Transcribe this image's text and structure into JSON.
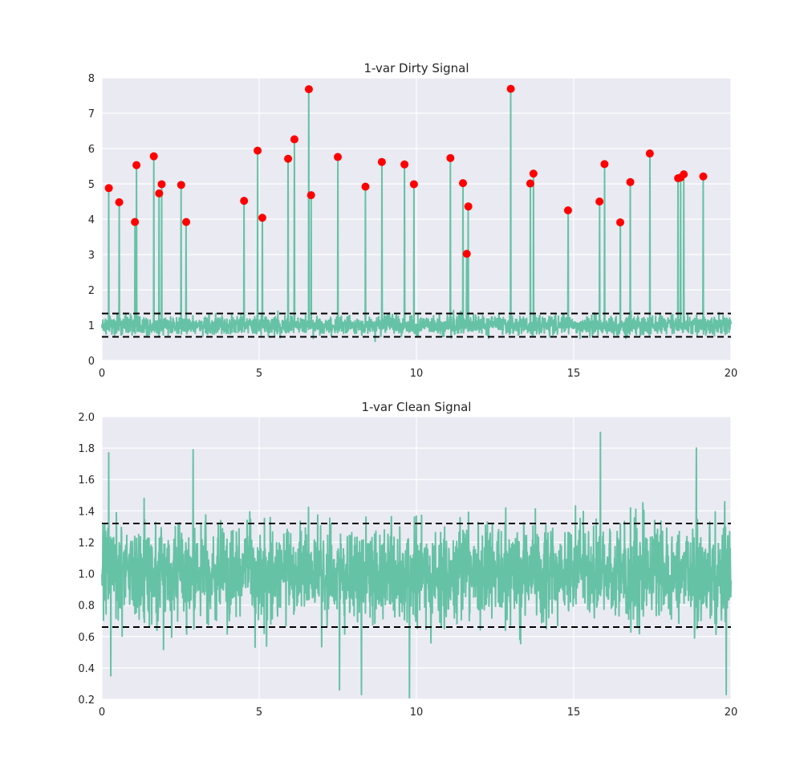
{
  "chart_data": [
    {
      "type": "line",
      "title": "1-var Dirty Signal",
      "xlabel": "",
      "ylabel": "",
      "xlim": [
        0,
        20
      ],
      "ylim": [
        0,
        8
      ],
      "xticks": [
        "0",
        "5",
        "10",
        "15",
        "20"
      ],
      "yticks": [
        "0",
        "1",
        "2",
        "3",
        "4",
        "5",
        "6",
        "7",
        "8"
      ],
      "grid": true,
      "baseline": {
        "mean": 1.0,
        "noise_min": 0.25,
        "noise_max": 1.65
      },
      "thresholds": [
        1.33,
        0.67
      ],
      "outliers": [
        {
          "x": 0.22,
          "y": 4.88
        },
        {
          "x": 0.55,
          "y": 4.48
        },
        {
          "x": 1.05,
          "y": 3.92
        },
        {
          "x": 1.1,
          "y": 5.53
        },
        {
          "x": 1.65,
          "y": 5.78
        },
        {
          "x": 1.82,
          "y": 4.73
        },
        {
          "x": 1.9,
          "y": 4.99
        },
        {
          "x": 2.52,
          "y": 4.97
        },
        {
          "x": 2.68,
          "y": 3.92
        },
        {
          "x": 4.52,
          "y": 4.52
        },
        {
          "x": 4.95,
          "y": 5.94
        },
        {
          "x": 5.1,
          "y": 4.04
        },
        {
          "x": 5.92,
          "y": 5.71
        },
        {
          "x": 6.12,
          "y": 6.26
        },
        {
          "x": 6.58,
          "y": 7.68
        },
        {
          "x": 6.65,
          "y": 4.68
        },
        {
          "x": 7.5,
          "y": 5.76
        },
        {
          "x": 8.38,
          "y": 4.92
        },
        {
          "x": 8.9,
          "y": 5.62
        },
        {
          "x": 9.62,
          "y": 5.55
        },
        {
          "x": 9.92,
          "y": 4.99
        },
        {
          "x": 11.08,
          "y": 5.73
        },
        {
          "x": 11.48,
          "y": 5.02
        },
        {
          "x": 11.6,
          "y": 3.02
        },
        {
          "x": 11.65,
          "y": 4.36
        },
        {
          "x": 13.0,
          "y": 7.69
        },
        {
          "x": 13.62,
          "y": 5.01
        },
        {
          "x": 13.72,
          "y": 5.29
        },
        {
          "x": 14.82,
          "y": 4.25
        },
        {
          "x": 15.82,
          "y": 4.5
        },
        {
          "x": 15.98,
          "y": 5.56
        },
        {
          "x": 16.48,
          "y": 3.91
        },
        {
          "x": 16.8,
          "y": 5.05
        },
        {
          "x": 17.42,
          "y": 5.86
        },
        {
          "x": 18.32,
          "y": 5.16
        },
        {
          "x": 18.4,
          "y": 5.18
        },
        {
          "x": 18.5,
          "y": 5.27
        },
        {
          "x": 19.12,
          "y": 5.21
        }
      ],
      "colors": {
        "signal": "#66c2a5",
        "outlier": "#ff0000",
        "threshold": "#000000",
        "background": "#eaeaf2"
      }
    },
    {
      "type": "line",
      "title": "1-var Clean Signal",
      "xlabel": "",
      "ylabel": "",
      "xlim": [
        0,
        20
      ],
      "ylim": [
        0.2,
        2.0
      ],
      "xticks": [
        "0",
        "5",
        "10",
        "15",
        "20"
      ],
      "yticks": [
        "0.2",
        "0.4",
        "0.6",
        "0.8",
        "1.0",
        "1.2",
        "1.4",
        "1.6",
        "1.8",
        "2.0"
      ],
      "grid": true,
      "baseline": {
        "mean": 1.0,
        "noise_min": 0.22,
        "noise_max": 1.9
      },
      "thresholds": [
        1.32,
        0.66
      ],
      "spikes": [
        {
          "x": 0.22,
          "y": 1.77
        },
        {
          "x": 0.28,
          "y": 0.35
        },
        {
          "x": 2.9,
          "y": 1.79
        },
        {
          "x": 7.55,
          "y": 0.26
        },
        {
          "x": 8.25,
          "y": 0.23
        },
        {
          "x": 9.78,
          "y": 0.21
        },
        {
          "x": 15.85,
          "y": 1.9
        },
        {
          "x": 18.9,
          "y": 1.8
        },
        {
          "x": 19.85,
          "y": 0.23
        }
      ],
      "colors": {
        "signal": "#66c2a5",
        "threshold": "#000000",
        "background": "#eaeaf2"
      }
    }
  ]
}
